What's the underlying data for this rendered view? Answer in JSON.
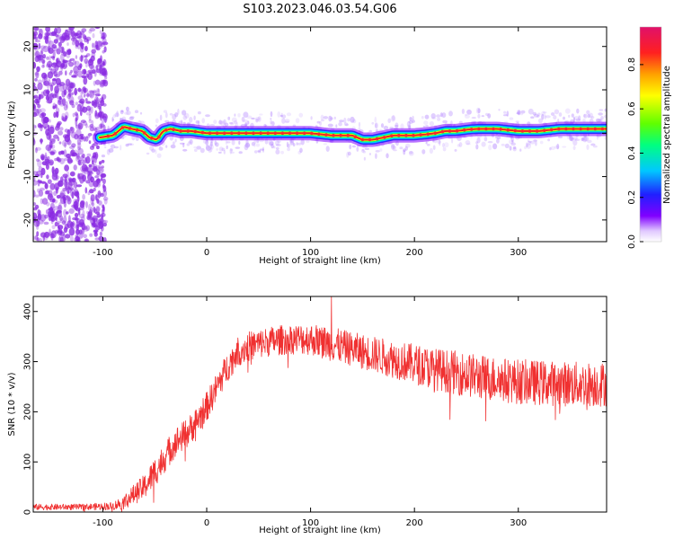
{
  "title": "S103.2023.046.03.54.G06",
  "colors": {
    "snr_line": "#f03030",
    "ridge_peak": "#e8202a",
    "scatter": "#8a2be2",
    "colormap": [
      "#ffffff",
      "#c8a0ff",
      "#8000ff",
      "#2020ff",
      "#00c8ff",
      "#00ff80",
      "#60ff00",
      "#ffff00",
      "#ffa000",
      "#ff2020",
      "#e0106a"
    ]
  },
  "chart_data": [
    {
      "type": "heatmap",
      "xlabel": "Height of straight line (km)",
      "ylabel": "Frequency (Hz)",
      "xlim": [
        -167,
        385
      ],
      "ylim": [
        -25,
        24.5
      ],
      "xticks": [
        -100,
        0,
        100,
        200,
        300
      ],
      "yticks": [
        -20,
        -10,
        0,
        10,
        20
      ],
      "grid": false,
      "colorbar": {
        "label": "Normalized spectral amplitude",
        "range": [
          0.0,
          0.97
        ],
        "ticks": [
          "0.0",
          "0.2",
          "0.4",
          "0.6",
          "0.8"
        ]
      },
      "ridge": {
        "description_free_region_end_x": -103,
        "x": [
          -103,
          -90,
          -80,
          -72,
          -62,
          -55,
          -48,
          -42,
          -35,
          -25,
          -15,
          0,
          20,
          40,
          60,
          80,
          100,
          120,
          140,
          150,
          160,
          170,
          180,
          190,
          200,
          210,
          220,
          230,
          240,
          250,
          260,
          280,
          300,
          320,
          340,
          360,
          385
        ],
        "y": [
          -1,
          -0.5,
          1.5,
          1,
          0.5,
          -1,
          -1.5,
          0.5,
          1,
          0.5,
          0.5,
          0,
          0,
          0,
          0,
          0,
          0,
          -0.5,
          -0.5,
          -1.5,
          -1.5,
          -1,
          -0.5,
          -0.5,
          -0.5,
          -0.3,
          0,
          0.5,
          0.5,
          0.8,
          1,
          1,
          0.5,
          0.5,
          1,
          1,
          1
        ]
      }
    },
    {
      "type": "line",
      "xlabel": "Height of straight line (km)",
      "ylabel": "SNR (10 * v/v)",
      "xlim": [
        -167,
        385
      ],
      "ylim": [
        0,
        430
      ],
      "xticks": [
        -100,
        0,
        100,
        200,
        300
      ],
      "yticks": [
        0,
        100,
        200,
        300,
        400
      ],
      "grid": false,
      "series": [
        {
          "envelope_x": [
            -167,
            -120,
            -90,
            -80,
            -70,
            -60,
            -50,
            -40,
            -30,
            -20,
            -10,
            0,
            10,
            20,
            30,
            40,
            60,
            80,
            100,
            120,
            140,
            160,
            180,
            200,
            220,
            240,
            260,
            280,
            300,
            320,
            340,
            360,
            385
          ],
          "envelope_mean": [
            10,
            10,
            12,
            20,
            35,
            50,
            80,
            110,
            140,
            155,
            180,
            210,
            250,
            290,
            320,
            330,
            340,
            345,
            345,
            335,
            325,
            315,
            305,
            295,
            285,
            278,
            270,
            265,
            260,
            258,
            256,
            255,
            255
          ],
          "envelope_spread": [
            6,
            6,
            8,
            15,
            20,
            25,
            30,
            30,
            30,
            30,
            30,
            30,
            30,
            30,
            30,
            30,
            30,
            30,
            32,
            34,
            34,
            36,
            38,
            40,
            42,
            44,
            45,
            45,
            45,
            45,
            45,
            45,
            45
          ],
          "max_value": 430,
          "max_at_x": 120
        }
      ]
    }
  ]
}
